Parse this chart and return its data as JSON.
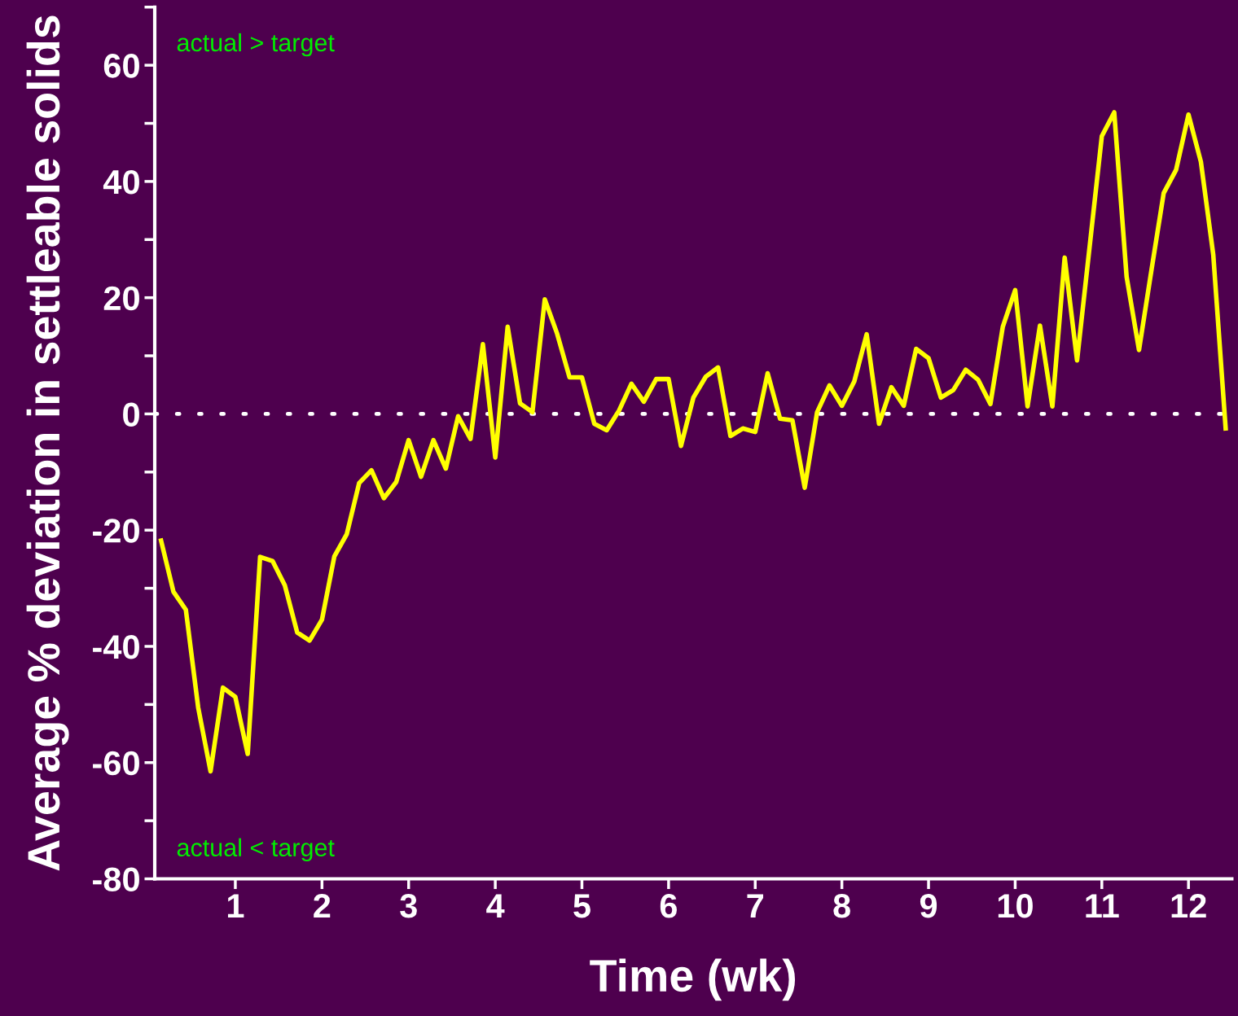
{
  "chart_data": {
    "type": "line",
    "xlabel": "Time (wk)",
    "ylabel": "Average % deviation in settleable solids",
    "x": [
      0.143,
      0.286,
      0.429,
      0.571,
      0.714,
      0.857,
      1.0,
      1.143,
      1.286,
      1.429,
      1.571,
      1.714,
      1.857,
      2.0,
      2.143,
      2.286,
      2.429,
      2.571,
      2.714,
      2.857,
      3.0,
      3.143,
      3.286,
      3.429,
      3.571,
      3.714,
      3.857,
      4.0,
      4.143,
      4.286,
      4.429,
      4.571,
      4.714,
      4.857,
      5.0,
      5.143,
      5.286,
      5.429,
      5.571,
      5.714,
      5.857,
      6.0,
      6.143,
      6.286,
      6.429,
      6.571,
      6.714,
      6.857,
      7.0,
      7.143,
      7.286,
      7.429,
      7.571,
      7.714,
      7.857,
      8.0,
      8.143,
      8.286,
      8.429,
      8.571,
      8.714,
      8.857,
      9.0,
      9.143,
      9.286,
      9.429,
      9.571,
      9.714,
      9.857,
      10.0,
      10.143,
      10.286,
      10.429,
      10.571,
      10.714,
      10.857,
      11.0,
      11.143,
      11.286,
      11.429,
      11.571,
      11.714,
      11.857,
      12.0,
      12.143,
      12.286,
      12.429
    ],
    "series": [
      {
        "color": "#ffff00",
        "values": [
          -21.8,
          -30.6,
          -33.7,
          -50.5,
          -61.5,
          -47.1,
          -48.7,
          -58.5,
          -24.6,
          -25.3,
          -29.5,
          -37.6,
          -39.0,
          -35.4,
          -24.5,
          -20.7,
          -11.9,
          -9.7,
          -14.5,
          -11.7,
          -4.5,
          -10.8,
          -4.5,
          -9.4,
          -0.4,
          -4.3,
          12.0,
          -7.5,
          15.0,
          1.8,
          0.3,
          19.7,
          13.8,
          6.3,
          6.3,
          -1.7,
          -2.8,
          0.6,
          5.2,
          2.1,
          6.0,
          6.0,
          -5.5,
          2.8,
          6.4,
          8.0,
          -3.8,
          -2.5,
          -3.1,
          7.0,
          -0.8,
          -1.1,
          -12.7,
          0.3,
          4.9,
          1.4,
          5.6,
          13.7,
          -1.7,
          4.6,
          1.4,
          11.2,
          9.6,
          2.8,
          4.1,
          7.6,
          5.9,
          1.7,
          15.0,
          21.3,
          1.3,
          15.2,
          1.3,
          26.9,
          9.2,
          28.5,
          47.8,
          51.9,
          23.6,
          11.0,
          24.6,
          38.0,
          42.0,
          51.5,
          43.4,
          27.4,
          -2.5
        ]
      }
    ],
    "xlim": [
      0.07,
      12.5
    ],
    "xticks": [
      1,
      2,
      3,
      4,
      5,
      6,
      7,
      8,
      9,
      10,
      11,
      12
    ],
    "ylim": [
      -80,
      70
    ],
    "yticks": [
      -80,
      {
        "value": -70,
        "label": null
      },
      -60,
      {
        "value": -50,
        "label": null
      },
      -40,
      {
        "value": -30,
        "label": null
      },
      -20,
      {
        "value": -10,
        "label": null
      },
      0,
      {
        "value": 10,
        "label": null
      },
      20,
      {
        "value": 30,
        "label": null
      },
      40,
      {
        "value": 50,
        "label": null
      },
      60,
      {
        "value": 70,
        "label": null
      }
    ],
    "ref_lines": [
      {
        "axis": "y",
        "value": 0,
        "color": "#ffffff",
        "line_style": "dotted"
      }
    ],
    "annotations": [
      "actual > target",
      "actual < target"
    ],
    "marker": "none",
    "line_style": "solid",
    "grid": false,
    "legend": false
  }
}
